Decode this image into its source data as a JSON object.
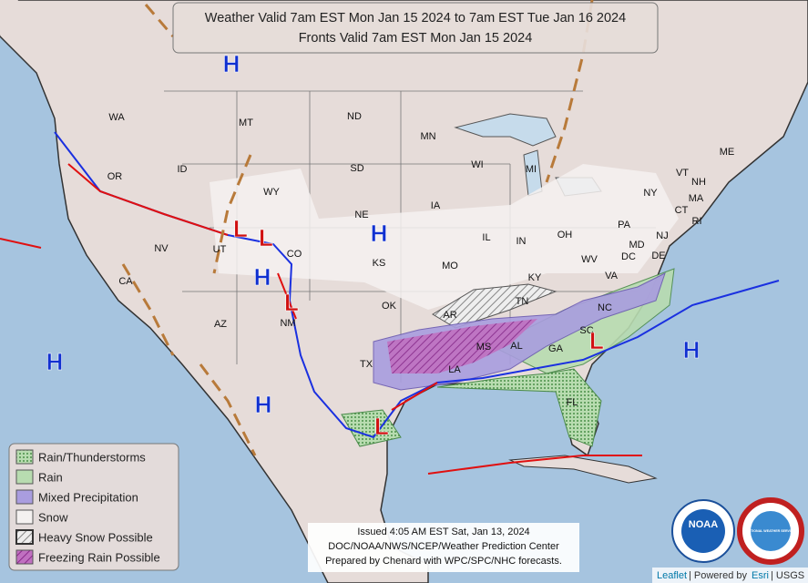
{
  "header": {
    "lines": [
      "Weather Valid 7am EST Mon Jan 15 2024 to 7am EST Tue Jan 16 2024",
      "Fronts Valid 7am EST Mon Jan 15 2024"
    ]
  },
  "states": [
    "WA",
    "OR",
    "CA",
    "ID",
    "NV",
    "MT",
    "WY",
    "UT",
    "AZ",
    "CO",
    "NM",
    "ND",
    "SD",
    "NE",
    "KS",
    "OK",
    "TX",
    "MN",
    "IA",
    "MO",
    "AR",
    "LA",
    "WI",
    "IL",
    "MI",
    "IN",
    "OH",
    "KY",
    "TN",
    "MS",
    "AL",
    "GA",
    "FL",
    "SC",
    "NC",
    "VA",
    "WV",
    "PA",
    "NY",
    "MD",
    "DE",
    "NJ",
    "DC",
    "CT",
    "RI",
    "MA",
    "VT",
    "NH",
    "ME"
  ],
  "pressure_centers": [
    "H",
    "H",
    "H",
    "H",
    "H",
    "H",
    "L",
    "L",
    "L",
    "L",
    "L"
  ],
  "legend": [
    "Rain/Thunderstorms",
    "Rain",
    "Mixed Precipitation",
    "Snow",
    "Heavy Snow Possible",
    "Freezing Rain Possible"
  ],
  "issued": [
    "Issued  4:05 AM EST Sat, Jan 13, 2024",
    "DOC/NOAA/NWS/NCEP/Weather Prediction Center",
    "Prepared by Chenard with WPC/SPC/NHC forecasts."
  ],
  "logos": [
    "NOAA",
    "NATIONAL WEATHER SERVICE"
  ],
  "attribution": [
    "Leaflet",
    "| Powered by",
    "Esri",
    "| USGS"
  ]
}
